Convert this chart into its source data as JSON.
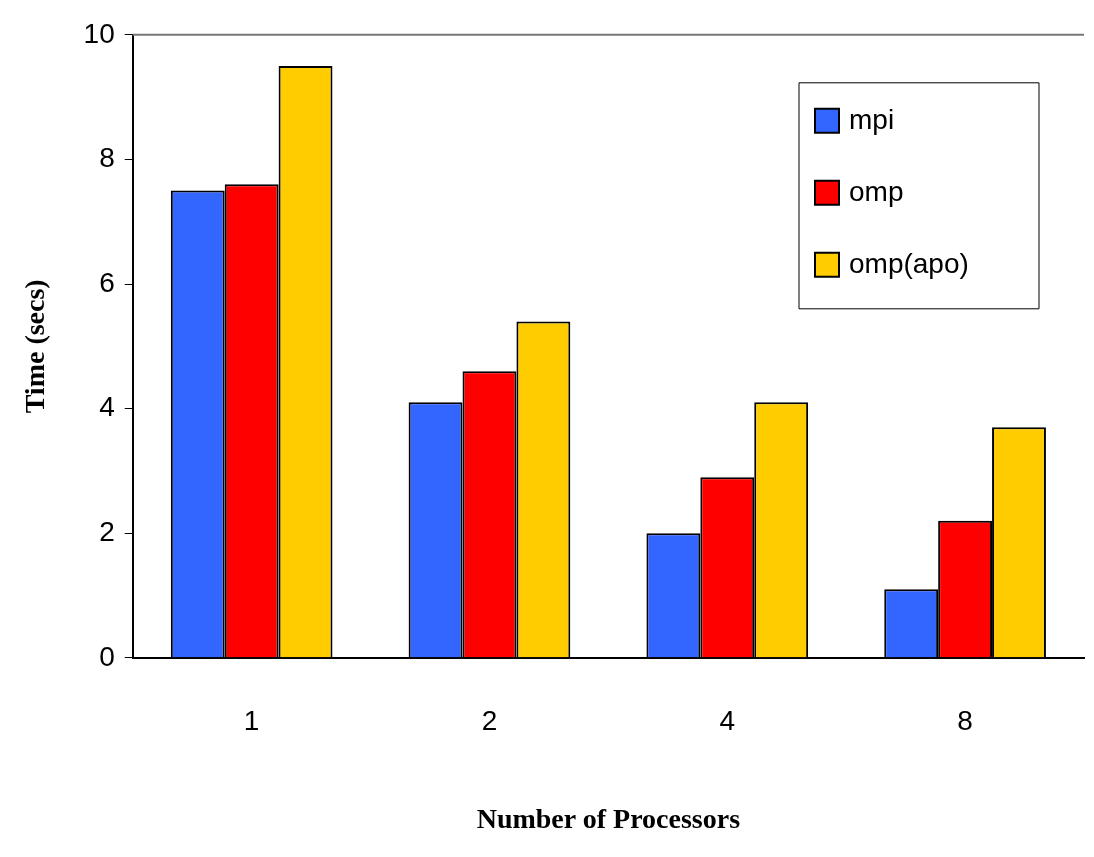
{
  "chart_data": {
    "type": "bar",
    "xlabel": "Number of Processors",
    "ylabel": "Time (secs)",
    "categories": [
      "1",
      "2",
      "4",
      "8"
    ],
    "series": [
      {
        "name": "mpi",
        "color": "#3366ff",
        "values": [
          7.5,
          4.1,
          2.0,
          1.1
        ]
      },
      {
        "name": "omp",
        "color": "#ff0000",
        "values": [
          7.6,
          4.6,
          2.9,
          2.2
        ]
      },
      {
        "name": "omp(apo)",
        "color": "#ffcc00",
        "values": [
          9.5,
          5.4,
          4.1,
          3.7
        ]
      }
    ],
    "ylim": [
      0,
      10
    ],
    "yticks": [
      0,
      2,
      4,
      6,
      8,
      10
    ],
    "grid": false,
    "legend": "top right"
  }
}
